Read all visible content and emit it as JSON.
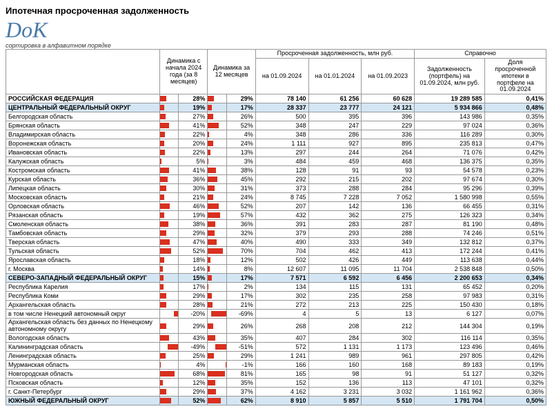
{
  "title": "Ипотечная просроченная задолженность",
  "logo_text": "DoK",
  "logo_color": "#4a7ba8",
  "sort_note": "сортировка в алфавитном порядке",
  "bar_color": "#d9301f",
  "highlight_bg": "#d4e6f4",
  "headers": {
    "col0": "",
    "dyn8_group": "Динамика с начала 2024 года (за 8 месяцев)",
    "dyn12": "Динамика за 12 месяцев",
    "overdue_group": "Просроченная задолженность, млн руб.",
    "ref_group": "Справочно",
    "d1": "на 01.09.2024",
    "d2": "на 01.01.2024",
    "d3": "на 01.09.2023",
    "port": "Задолженность (портфель) на 01.09.2024, млн руб.",
    "share": "Доля просроченной ипотеки в портфеле на 01.09.2024"
  },
  "rows": [
    {
      "name": "РОССИЙСКАЯ ФЕДЕРАЦИЯ",
      "p8": 28,
      "p12": 29,
      "v1": "78 140",
      "v2": "61 256",
      "v3": "60 628",
      "port": "19 289 585",
      "share": "0,41%",
      "bold": true
    },
    {
      "name": "ЦЕНТРАЛЬНЫЙ ФЕДЕРАЛЬНЫЙ ОКРУГ",
      "p8": 19,
      "p12": 17,
      "v1": "28 337",
      "v2": "23 777",
      "v3": "24 121",
      "port": "5 934 866",
      "share": "0,48%",
      "hl": true
    },
    {
      "name": "Белгородская область",
      "p8": 27,
      "p12": 26,
      "v1": "500",
      "v2": "395",
      "v3": "396",
      "port": "143 986",
      "share": "0,35%"
    },
    {
      "name": "Брянская область",
      "p8": 41,
      "p12": 52,
      "v1": "348",
      "v2": "247",
      "v3": "229",
      "port": "97 024",
      "share": "0,36%"
    },
    {
      "name": "Владимирская область",
      "p8": 22,
      "p12": 4,
      "v1": "348",
      "v2": "286",
      "v3": "336",
      "port": "116 289",
      "share": "0,30%"
    },
    {
      "name": "Воронежская область",
      "p8": 20,
      "p12": 24,
      "v1": "1 111",
      "v2": "927",
      "v3": "895",
      "port": "235 813",
      "share": "0,47%"
    },
    {
      "name": "Ивановская область",
      "p8": 22,
      "p12": 13,
      "v1": "297",
      "v2": "244",
      "v3": "264",
      "port": "71 076",
      "share": "0,42%"
    },
    {
      "name": "Калужская область",
      "p8": 5,
      "p12": 3,
      "v1": "484",
      "v2": "459",
      "v3": "468",
      "port": "136 375",
      "share": "0,35%"
    },
    {
      "name": "Костромская область",
      "p8": 41,
      "p12": 38,
      "v1": "128",
      "v2": "91",
      "v3": "93",
      "port": "54 578",
      "share": "0,23%"
    },
    {
      "name": "Курская область",
      "p8": 36,
      "p12": 45,
      "v1": "292",
      "v2": "215",
      "v3": "202",
      "port": "97 674",
      "share": "0,30%"
    },
    {
      "name": "Липецкая область",
      "p8": 30,
      "p12": 31,
      "v1": "373",
      "v2": "288",
      "v3": "284",
      "port": "95 296",
      "share": "0,39%"
    },
    {
      "name": "Московская область",
      "p8": 21,
      "p12": 24,
      "v1": "8 745",
      "v2": "7 228",
      "v3": "7 052",
      "port": "1 580 998",
      "share": "0,55%"
    },
    {
      "name": "Орловская область",
      "p8": 46,
      "p12": 52,
      "v1": "207",
      "v2": "142",
      "v3": "136",
      "port": "66 455",
      "share": "0,31%"
    },
    {
      "name": "Рязанская область",
      "p8": 19,
      "p12": 57,
      "v1": "432",
      "v2": "362",
      "v3": "275",
      "port": "126 323",
      "share": "0,34%"
    },
    {
      "name": "Смоленская область",
      "p8": 38,
      "p12": 36,
      "v1": "391",
      "v2": "283",
      "v3": "287",
      "port": "81 190",
      "share": "0,48%"
    },
    {
      "name": "Тамбовская область",
      "p8": 29,
      "p12": 32,
      "v1": "379",
      "v2": "293",
      "v3": "288",
      "port": "74 246",
      "share": "0,51%"
    },
    {
      "name": "Тверская область",
      "p8": 47,
      "p12": 40,
      "v1": "490",
      "v2": "333",
      "v3": "349",
      "port": "132 812",
      "share": "0,37%"
    },
    {
      "name": "Тульская область",
      "p8": 52,
      "p12": 70,
      "v1": "704",
      "v2": "462",
      "v3": "413",
      "port": "172 244",
      "share": "0,41%"
    },
    {
      "name": "Ярославская область",
      "p8": 18,
      "p12": 12,
      "v1": "502",
      "v2": "426",
      "v3": "449",
      "port": "113 638",
      "share": "0,44%"
    },
    {
      "name": "г. Москва",
      "p8": 14,
      "p12": 8,
      "v1": "12 607",
      "v2": "11 095",
      "v3": "11 704",
      "port": "2 538 848",
      "share": "0,50%"
    },
    {
      "name": "СЕВЕРО-ЗАПАДНЫЙ ФЕДЕРАЛЬНЫЙ ОКРУГ",
      "p8": 15,
      "p12": 17,
      "v1": "7 571",
      "v2": "6 592",
      "v3": "6 456",
      "port": "2 200 653",
      "share": "0,34%",
      "hl": true
    },
    {
      "name": "Республика Карелия",
      "p8": 17,
      "p12": 2,
      "v1": "134",
      "v2": "115",
      "v3": "131",
      "port": "65 452",
      "share": "0,20%"
    },
    {
      "name": "Республика Коми",
      "p8": 29,
      "p12": 17,
      "v1": "302",
      "v2": "235",
      "v3": "258",
      "port": "97 983",
      "share": "0,31%"
    },
    {
      "name": "Архангельская область",
      "p8": 28,
      "p12": 21,
      "v1": "272",
      "v2": "213",
      "v3": "225",
      "port": "150 430",
      "share": "0,18%"
    },
    {
      "name": "в том числе Ненецкий автономный округ",
      "p8": -20,
      "p12": -69,
      "v1": "4",
      "v2": "5",
      "v3": "13",
      "port": "6 127",
      "share": "0,07%"
    },
    {
      "name": "Архангельская область без данных по Ненецкому автономному округу",
      "p8": 29,
      "p12": 26,
      "v1": "268",
      "v2": "208",
      "v3": "212",
      "port": "144 304",
      "share": "0,19%"
    },
    {
      "name": "Вологодская область",
      "p8": 43,
      "p12": 35,
      "v1": "407",
      "v2": "284",
      "v3": "302",
      "port": "116 114",
      "share": "0,35%"
    },
    {
      "name": "Калининградская область",
      "p8": -49,
      "p12": -51,
      "v1": "572",
      "v2": "1 131",
      "v3": "1 173",
      "port": "123 496",
      "share": "0,46%"
    },
    {
      "name": "Ленинградская область",
      "p8": 25,
      "p12": 29,
      "v1": "1 241",
      "v2": "989",
      "v3": "961",
      "port": "297 805",
      "share": "0,42%"
    },
    {
      "name": "Мурманская область",
      "p8": 4,
      "p12": -1,
      "v1": "166",
      "v2": "160",
      "v3": "168",
      "port": "89 183",
      "share": "0,19%"
    },
    {
      "name": "Новгородская область",
      "p8": 68,
      "p12": 81,
      "v1": "165",
      "v2": "98",
      "v3": "91",
      "port": "51 127",
      "share": "0,32%"
    },
    {
      "name": "Псковская область",
      "p8": 12,
      "p12": 35,
      "v1": "152",
      "v2": "136",
      "v3": "113",
      "port": "47 101",
      "share": "0,32%"
    },
    {
      "name": "г. Санкт-Петербург",
      "p8": 29,
      "p12": 37,
      "v1": "4 162",
      "v2": "3 231",
      "v3": "3 032",
      "port": "1 161 962",
      "share": "0,36%"
    },
    {
      "name": "ЮЖНЫЙ ФЕДЕРАЛЬНЫЙ ОКРУГ",
      "p8": 52,
      "p12": 62,
      "v1": "8 910",
      "v2": "5 857",
      "v3": "5 510",
      "port": "1 791 704",
      "share": "0,50%",
      "hl": true
    }
  ],
  "bar_scale_max": 85
}
